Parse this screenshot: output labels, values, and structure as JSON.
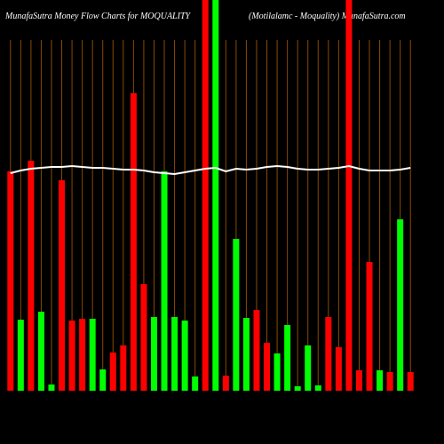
{
  "chart_data": {
    "type": "bar",
    "title": "MunafaSutra  Money Flow  Charts for MOQUALITY",
    "subtitle": "(Motilalamc -  Moquality) MunafaSutra.com",
    "categories": [
      null,
      null,
      null,
      null,
      null,
      null,
      null,
      null,
      null,
      null,
      null,
      null,
      null,
      null,
      null,
      null,
      null,
      null,
      null,
      null,
      null,
      null,
      null,
      null,
      null,
      null,
      null,
      null,
      null,
      null,
      null,
      null,
      null,
      null,
      null,
      null,
      null,
      null,
      null,
      null
    ],
    "values": [
      247,
      80,
      259,
      89,
      7,
      237,
      79,
      81,
      81,
      24,
      43,
      51,
      335,
      120,
      83,
      247,
      83,
      79,
      16,
      440,
      440,
      17,
      171,
      82,
      91,
      54,
      42,
      74,
      5,
      51,
      6,
      83,
      49,
      440,
      23,
      145,
      23,
      21,
      193,
      21
    ],
    "colors": [
      "#ff0000",
      "#00ff00",
      "#ff0000",
      "#00ff00",
      "#00ff00",
      "#ff0000",
      "#ff0000",
      "#ff0000",
      "#00ff00",
      "#00ff00",
      "#ff0000",
      "#ff0000",
      "#ff0000",
      "#ff0000",
      "#00ff00",
      "#00ff00",
      "#00ff00",
      "#00ff00",
      "#00ff00",
      "#ff0000",
      "#00ff00",
      "#ff0000",
      "#00ff00",
      "#00ff00",
      "#ff0000",
      "#ff0000",
      "#00ff00",
      "#00ff00",
      "#00ff00",
      "#00ff00",
      "#00ff00",
      "#ff0000",
      "#ff0000",
      "#ff0000",
      "#ff0000",
      "#ff0000",
      "#00ff00",
      "#ff0000",
      "#00ff00",
      "#ff0000"
    ],
    "line": {
      "color": "#ffffff",
      "values": [
        245,
        248,
        250,
        251,
        252,
        252,
        253,
        252,
        251,
        251,
        250,
        249,
        249,
        248,
        246,
        245,
        244,
        246,
        248,
        250,
        251,
        247,
        250,
        249,
        250,
        252,
        253,
        252,
        250,
        249,
        249,
        250,
        251,
        253,
        250,
        248,
        248,
        248,
        249,
        251
      ]
    },
    "ylim": [
      0,
      440
    ],
    "grid": true,
    "grid_color": "#8a4a00"
  }
}
